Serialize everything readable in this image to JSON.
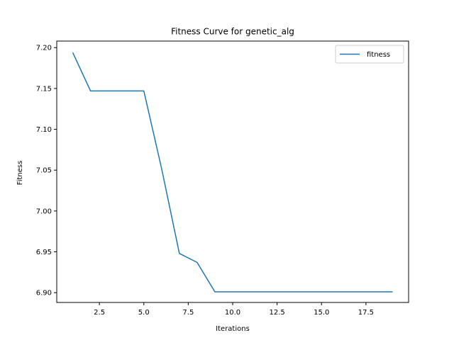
{
  "chart_data": {
    "type": "line",
    "title": "Fitness Curve for genetic_alg",
    "xlabel": "Iterations",
    "ylabel": "Fitness",
    "xlim": [
      0.1,
      19.9
    ],
    "ylim": [
      6.888,
      7.208
    ],
    "xticks": [
      2.5,
      5.0,
      7.5,
      10.0,
      12.5,
      15.0,
      17.5
    ],
    "xtick_labels": [
      "2.5",
      "5.0",
      "7.5",
      "10.0",
      "12.5",
      "15.0",
      "17.5"
    ],
    "yticks": [
      6.9,
      6.95,
      7.0,
      7.05,
      7.1,
      7.15,
      7.2
    ],
    "ytick_labels": [
      "6.90",
      "6.95",
      "7.00",
      "7.05",
      "7.10",
      "7.15",
      "7.20"
    ],
    "grid": false,
    "legend_position": "top-right",
    "series": [
      {
        "name": "fitness",
        "color": "#1f77b4",
        "x": [
          1,
          2,
          3,
          4,
          5,
          6,
          7,
          8,
          9,
          10,
          11,
          12,
          13,
          14,
          15,
          16,
          17,
          18,
          19
        ],
        "y": [
          7.194,
          7.147,
          7.147,
          7.147,
          7.147,
          7.052,
          6.948,
          6.937,
          6.901,
          6.901,
          6.901,
          6.901,
          6.901,
          6.901,
          6.901,
          6.901,
          6.901,
          6.901,
          6.901
        ]
      }
    ]
  }
}
